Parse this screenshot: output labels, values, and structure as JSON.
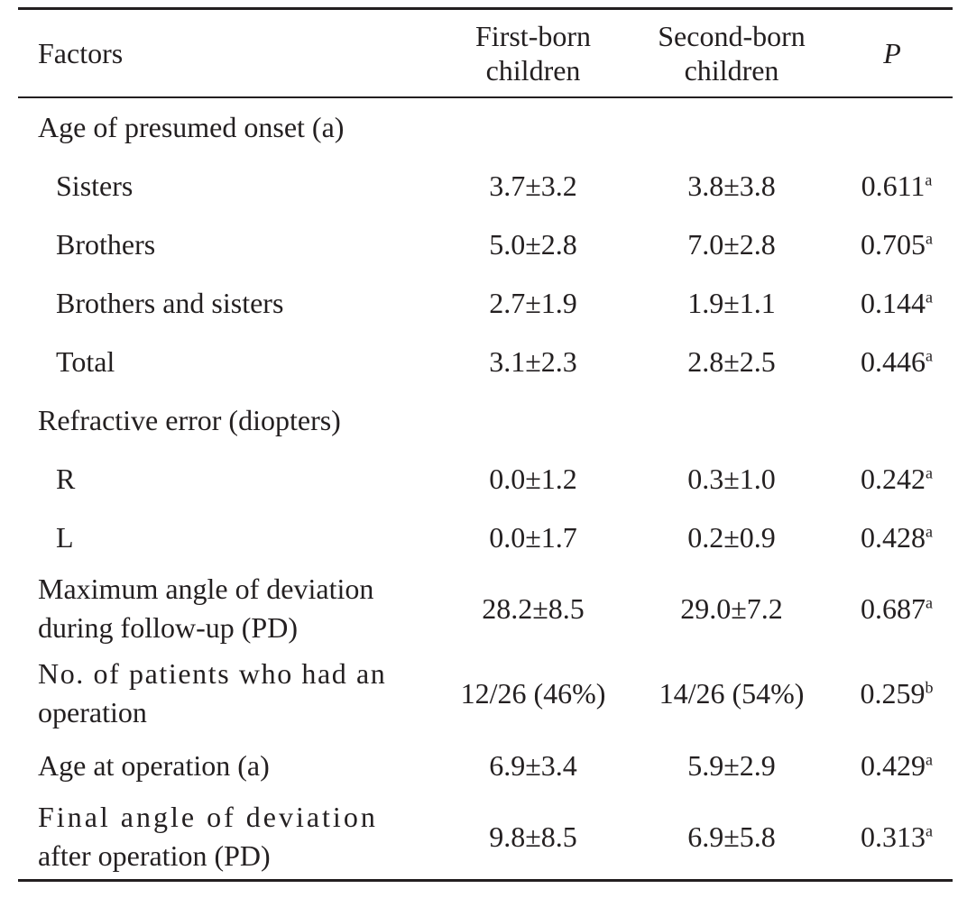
{
  "table": {
    "headers": {
      "factors": "Factors",
      "first_born_line1": "First-born",
      "first_born_line2": "children",
      "second_born_line1": "Second-born",
      "second_born_line2": "children",
      "p": "P"
    },
    "rows": [
      {
        "label": "Age of presumed onset (a)",
        "first": "",
        "second": "",
        "p": "",
        "sup": ""
      },
      {
        "label": "Sisters",
        "first": "3.7±3.2",
        "second": "3.8±3.8",
        "p": "0.611",
        "sup": "a"
      },
      {
        "label": "Brothers",
        "first": "5.0±2.8",
        "second": "7.0±2.8",
        "p": "0.705",
        "sup": "a"
      },
      {
        "label": "Brothers and sisters",
        "first": "2.7±1.9",
        "second": "1.9±1.1",
        "p": "0.144",
        "sup": "a"
      },
      {
        "label": "Total",
        "first": "3.1±2.3",
        "second": "2.8±2.5",
        "p": "0.446",
        "sup": "a"
      },
      {
        "label": "Refractive error (diopters)",
        "first": "",
        "second": "",
        "p": "",
        "sup": ""
      },
      {
        "label": "R",
        "first": "0.0±1.2",
        "second": "0.3±1.0",
        "p": "0.242",
        "sup": "a"
      },
      {
        "label": "L",
        "first": "0.0±1.7",
        "second": "0.2±0.9",
        "p": "0.428",
        "sup": "a"
      },
      {
        "label_line1": "Maximum angle of deviation",
        "label_line2": "during follow-up (PD)",
        "first": "28.2±8.5",
        "second": "29.0±7.2",
        "p": "0.687",
        "sup": "a"
      },
      {
        "label_line1": "No. of patients who had an",
        "label_line2": "operation",
        "first": "12/26 (46%)",
        "second": "14/26 (54%)",
        "p": "0.259",
        "sup": "b"
      },
      {
        "label": "Age at operation (a)",
        "first": "6.9±3.4",
        "second": "5.9±2.9",
        "p": "0.429",
        "sup": "a"
      },
      {
        "label_line1": "Final angle of deviation",
        "label_line2": "after operation (PD)",
        "first": "9.8±8.5",
        "second": "6.9±5.8",
        "p": "0.313",
        "sup": "a"
      }
    ]
  }
}
